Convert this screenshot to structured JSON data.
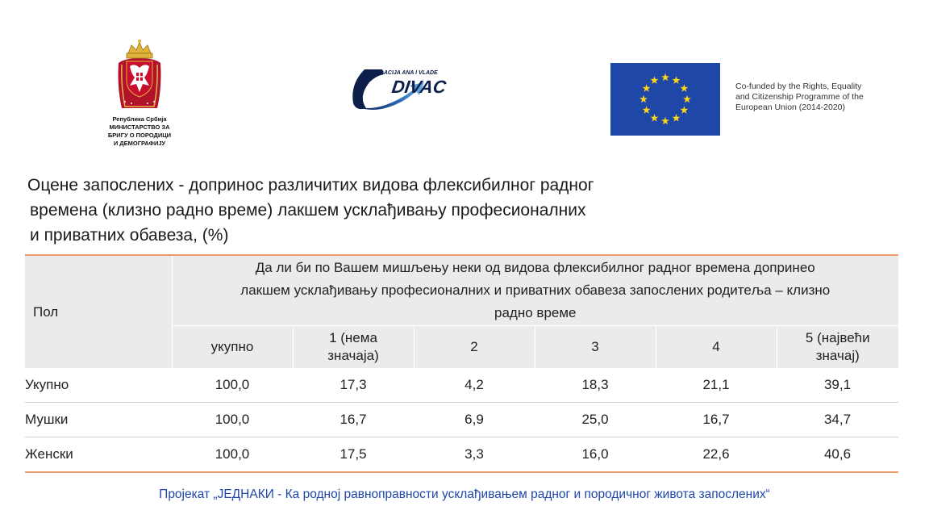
{
  "logos": {
    "ministry": {
      "lines": [
        "Република Србија",
        "МИНИСТАРСТВО ЗА",
        "БРИГУ О ПОРОДИЦИ",
        "И ДЕМОГРАФИЈУ"
      ]
    },
    "divac": {
      "small": "FONDACIJA ANA I VLADE",
      "big": "DIVAC"
    },
    "eu": {
      "lines": [
        "Co-funded by the Rights, Equality",
        "and Citizenship Programme of the",
        "European Union (2014-2020)"
      ],
      "flag_color": "#1f47a8",
      "star_color": "#ffd617"
    }
  },
  "title": {
    "line1": "Оцене запослених - допринос различитих видова флексибилног радног",
    "line2": "времена (клизно радно време) лакшем усклађивању професионалних",
    "line3": "и приватних обавеза, (%)"
  },
  "table": {
    "sex_header": "Пол",
    "question": {
      "line1": "Да ли би по Вашем мишљењу неки од видова флексибилног радног времена допринео",
      "line2": "лакшем усклађивању професионалних и приватних обавеза запослених родитеља – клизно",
      "line3": "радно време"
    },
    "columns": [
      {
        "line1": "укупно",
        "line2": ""
      },
      {
        "line1": "1 (нема",
        "line2": "значаја)"
      },
      {
        "line1": "2",
        "line2": ""
      },
      {
        "line1": "3",
        "line2": ""
      },
      {
        "line1": "4",
        "line2": ""
      },
      {
        "line1": "5 (највећи",
        "line2": "значај)"
      }
    ],
    "rows": [
      {
        "label": "Укупно",
        "values": [
          "100,0",
          "17,3",
          "4,2",
          "18,3",
          "21,1",
          "39,1"
        ]
      },
      {
        "label": "Мушки",
        "values": [
          "100,0",
          "16,7",
          "6,9",
          "25,0",
          "16,7",
          "34,7"
        ]
      },
      {
        "label": "Женски",
        "values": [
          "100,0",
          "17,5",
          "3,3",
          "16,0",
          "22,6",
          "40,6"
        ]
      }
    ],
    "accent_color": "#ef9a6a"
  },
  "footer": "Пројекат „ЈЕДНАКИ - Ка родној равноправности усклађивањем радног и породичног живота запослених“"
}
